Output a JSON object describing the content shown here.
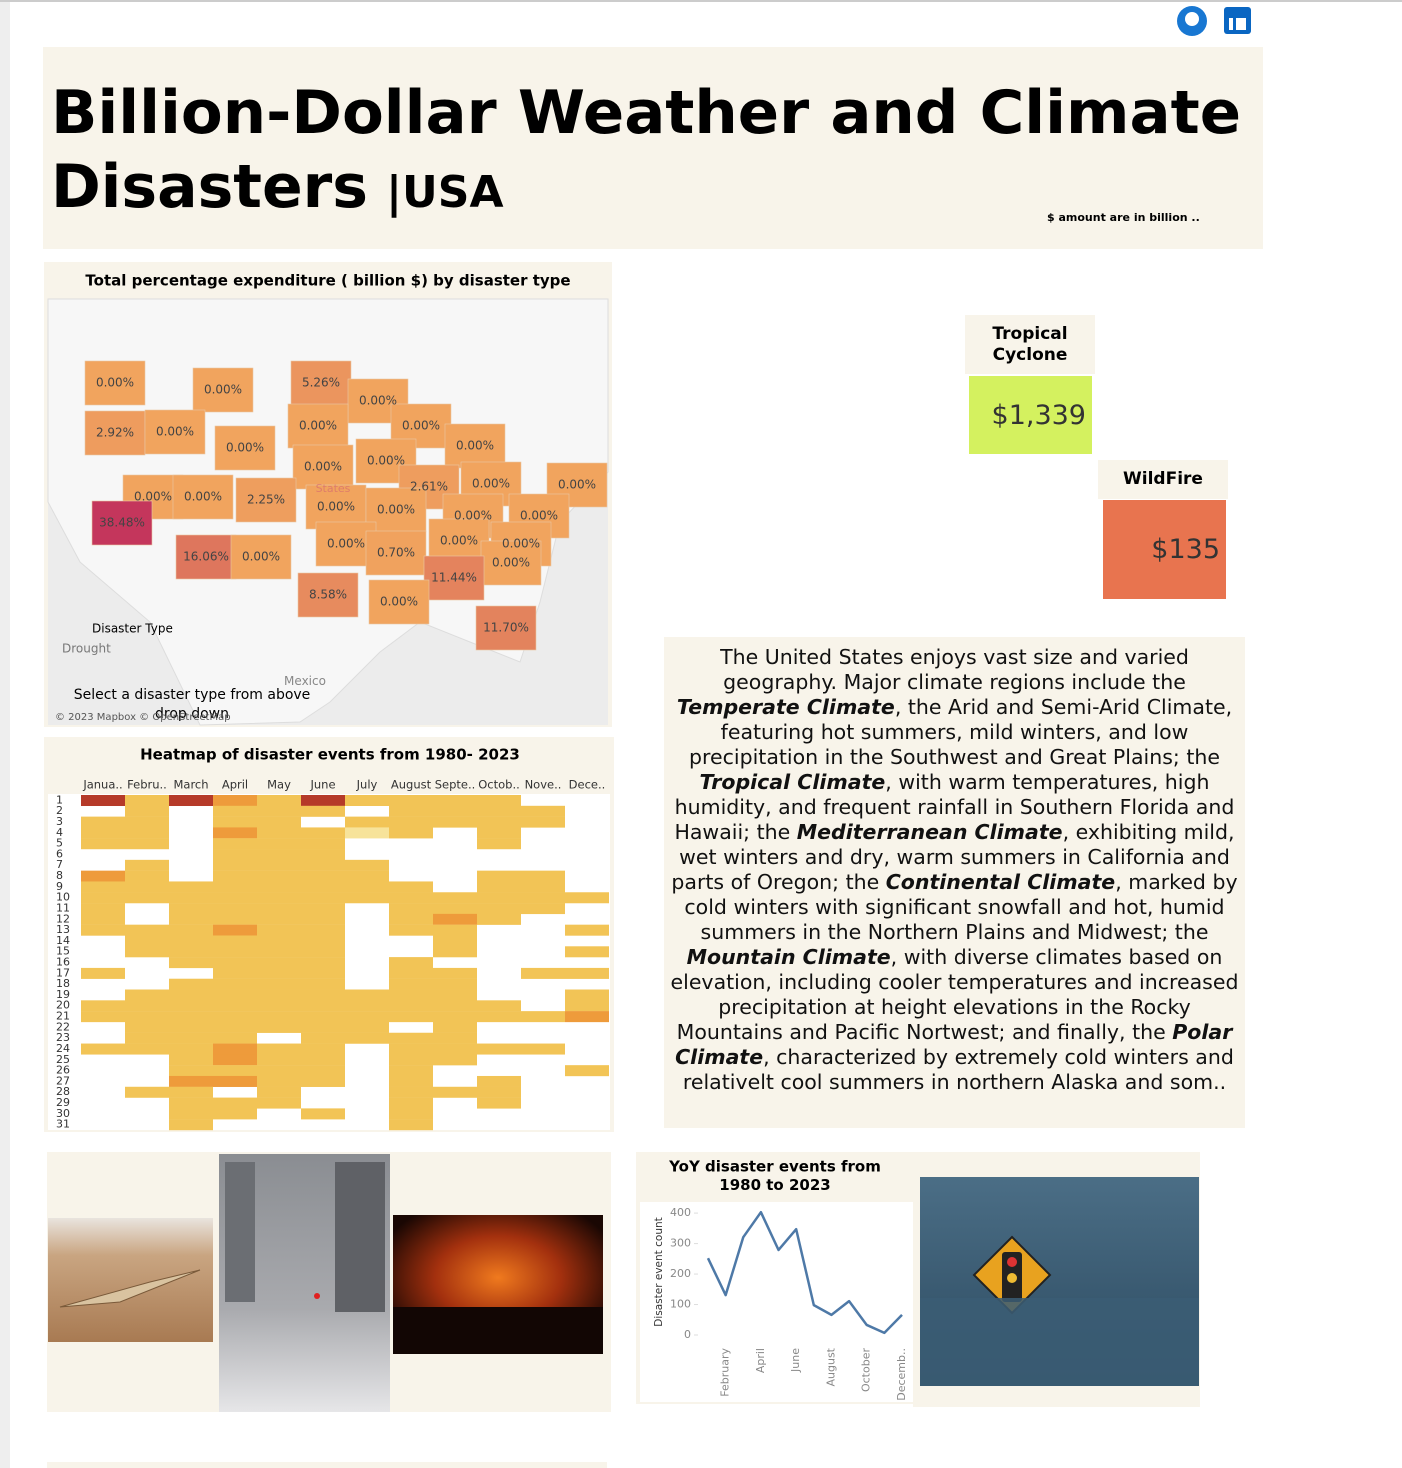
{
  "header": {
    "title": "Billion-Dollar Weather and Climate Disasters",
    "suffix": "|USA",
    "note": "$ amount are in billion .."
  },
  "kpis": [
    {
      "label": "Tropical Cyclone",
      "value": "$1,339",
      "color": "#d4f15f"
    },
    {
      "label": "WildFire",
      "value": "$135",
      "color": "#e8744f"
    }
  ],
  "description": [
    "The United States enjoys vast size and varied geography. Major climate regions include the ",
    {
      "em": "Temperate Climate"
    },
    ", the Arid and Semi-Arid Climate, featuring hot summers, mild winters, and low precipitation in the Southwest and Great Plains; the ",
    {
      "em": "Tropical Climate"
    },
    ", with warm temperatures, high humidity, and frequent rainfall in Southern Florida and Hawaii; the ",
    {
      "em": "Mediterranean Climate"
    },
    ", exhibiting mild, wet winters and dry, warm summers in California and parts of Oregon; the ",
    {
      "em": "Continental Climate"
    },
    ", marked by cold winters with significant snowfall and hot, humid summers in the Northern Plains and Midwest; the ",
    {
      "em": "Mountain Climate"
    },
    ", with diverse climates based on elevation, including cooler temperatures and increased precipitation at height elevations in the Rocky Mountains and Pacific Nortwest; and finally, the ",
    {
      "em": "Polar Climate"
    },
    ", characterized by extremely cold winters and relativelt cool summers in northern Alaska and som.."
  ],
  "chart_data": [
    {
      "type": "map",
      "title": "Total percentage expenditure ( billion $) by disaster type",
      "values": [
        0,
        0,
        5.26,
        0,
        2.92,
        0,
        0,
        0,
        0,
        0,
        0,
        0,
        2.61,
        0,
        0,
        0,
        0,
        2.25,
        0,
        0,
        0,
        0,
        38.48,
        0,
        0,
        0,
        0.7,
        0,
        16.06,
        0,
        11.44,
        8.58,
        0,
        11.7
      ],
      "value_labels": [
        "0.00%",
        "0.00%",
        "5.26%",
        "0.00%",
        "2.92%",
        "0.00%",
        "0.00%",
        "0.00%",
        "0.00%",
        "0.00%",
        "0.00%",
        "0.00%",
        "2.61%",
        "0.00%",
        "0.00%",
        "0.00%",
        "0.00%",
        "2.25%",
        "0.00%",
        "0.00%",
        "0.00%",
        "0.00%",
        "38.48%",
        "0.00%",
        "0.00%",
        "0.00%",
        "0.70%",
        "0.00%",
        "16.06%",
        "0.00%",
        "11.44%",
        "8.58%",
        "0.00%",
        "11.70%"
      ],
      "legend_title": "Disaster Type",
      "legend_value": "Drought",
      "place_labels": [
        "Mexico",
        "States"
      ],
      "instruction": "Select a disaster type from above drop down",
      "attribution": "© 2023 Mapbox © OpenStreetMap"
    },
    {
      "type": "heatmap",
      "title": "Heatmap of disaster events from 1980- 2023",
      "x_categories": [
        "Janua..",
        "Febru..",
        "March",
        "April",
        "May",
        "June",
        "July",
        "August",
        "Septe..",
        "Octob..",
        "Nove..",
        "Dece.."
      ],
      "y_categories": [
        1,
        2,
        3,
        4,
        5,
        6,
        7,
        8,
        9,
        10,
        11,
        12,
        13,
        14,
        15,
        16,
        17,
        18,
        19,
        20,
        21,
        22,
        23,
        24,
        25,
        26,
        27,
        28,
        29,
        30,
        31
      ],
      "values": [
        [
          5,
          2,
          5,
          3,
          2,
          5,
          2,
          2,
          2,
          2,
          null,
          null
        ],
        [
          null,
          2,
          null,
          2,
          2,
          2,
          null,
          2,
          2,
          2,
          2,
          null
        ],
        [
          2,
          2,
          null,
          2,
          2,
          null,
          2,
          2,
          2,
          2,
          2,
          null
        ],
        [
          2,
          2,
          null,
          3,
          2,
          2,
          1,
          2,
          null,
          2,
          null,
          null
        ],
        [
          2,
          2,
          null,
          2,
          2,
          2,
          null,
          null,
          null,
          2,
          null,
          null
        ],
        [
          null,
          null,
          null,
          2,
          2,
          2,
          null,
          null,
          null,
          null,
          null,
          null
        ],
        [
          null,
          2,
          null,
          2,
          2,
          2,
          2,
          null,
          null,
          null,
          null,
          null
        ],
        [
          3,
          2,
          null,
          2,
          2,
          2,
          2,
          null,
          null,
          2,
          2,
          null
        ],
        [
          2,
          2,
          2,
          2,
          2,
          2,
          2,
          2,
          null,
          2,
          2,
          null
        ],
        [
          2,
          2,
          2,
          2,
          2,
          2,
          2,
          2,
          2,
          2,
          2,
          2
        ],
        [
          2,
          null,
          2,
          2,
          2,
          2,
          null,
          2,
          2,
          2,
          2,
          null
        ],
        [
          2,
          null,
          2,
          2,
          2,
          2,
          null,
          2,
          3,
          2,
          null,
          null
        ],
        [
          2,
          2,
          2,
          3,
          2,
          2,
          null,
          2,
          2,
          null,
          null,
          2
        ],
        [
          null,
          2,
          2,
          2,
          2,
          2,
          null,
          null,
          2,
          null,
          null,
          null
        ],
        [
          null,
          2,
          2,
          2,
          2,
          2,
          null,
          null,
          2,
          null,
          null,
          2
        ],
        [
          null,
          null,
          2,
          2,
          2,
          2,
          null,
          2,
          null,
          null,
          null,
          null
        ],
        [
          2,
          null,
          null,
          2,
          2,
          2,
          null,
          2,
          2,
          null,
          2,
          2
        ],
        [
          null,
          null,
          2,
          2,
          2,
          2,
          null,
          2,
          2,
          null,
          null,
          null
        ],
        [
          null,
          2,
          2,
          2,
          2,
          2,
          2,
          2,
          2,
          null,
          null,
          2
        ],
        [
          2,
          2,
          2,
          2,
          2,
          2,
          2,
          2,
          2,
          2,
          null,
          2
        ],
        [
          2,
          2,
          2,
          2,
          2,
          2,
          2,
          2,
          2,
          2,
          2,
          3
        ],
        [
          null,
          2,
          2,
          2,
          2,
          2,
          2,
          null,
          2,
          null,
          null,
          null
        ],
        [
          null,
          2,
          2,
          2,
          null,
          2,
          2,
          2,
          2,
          null,
          null,
          null
        ],
        [
          2,
          2,
          2,
          3,
          2,
          2,
          null,
          2,
          2,
          2,
          2,
          null
        ],
        [
          null,
          null,
          2,
          3,
          2,
          2,
          null,
          2,
          2,
          null,
          null,
          null
        ],
        [
          null,
          null,
          2,
          2,
          2,
          2,
          null,
          2,
          null,
          null,
          null,
          2
        ],
        [
          null,
          null,
          3,
          3,
          2,
          2,
          null,
          2,
          null,
          2,
          null,
          null
        ],
        [
          null,
          2,
          2,
          null,
          2,
          null,
          null,
          2,
          2,
          2,
          null,
          null
        ],
        [
          null,
          null,
          2,
          2,
          2,
          null,
          null,
          2,
          null,
          2,
          null,
          null
        ],
        [
          null,
          null,
          2,
          2,
          null,
          2,
          null,
          2,
          null,
          null,
          null,
          null
        ],
        [
          null,
          null,
          2,
          null,
          null,
          null,
          null,
          2,
          null,
          null,
          null,
          null
        ]
      ]
    },
    {
      "type": "line",
      "title": "YoY disaster events from 1980 to 2023",
      "y_label": "Disaster event count",
      "categories": [
        null,
        "February",
        null,
        "April",
        null,
        "June",
        null,
        "August",
        null,
        "October",
        null,
        "Decemb.."
      ],
      "values": [
        252,
        131,
        321,
        403,
        279,
        347,
        98,
        66,
        111,
        33,
        7,
        66
      ],
      "color": "#4e79a7",
      "ylim": [
        0,
        420
      ],
      "yticks": [
        0,
        100,
        200,
        300,
        400
      ]
    }
  ]
}
